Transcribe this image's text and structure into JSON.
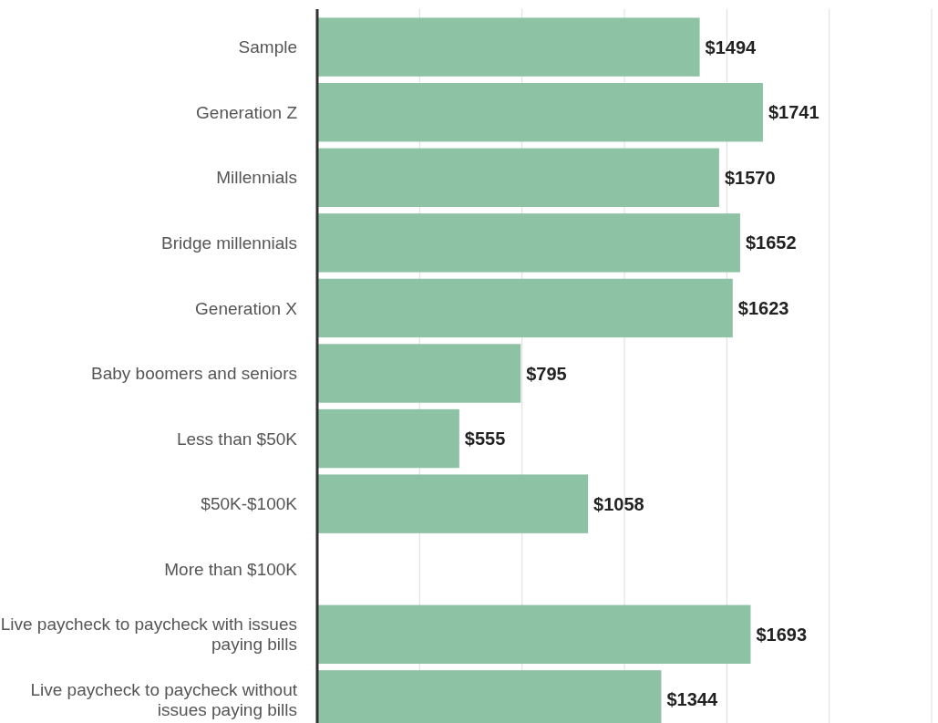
{
  "chart_data": {
    "type": "bar",
    "orientation": "horizontal",
    "categories": [
      "Sample",
      "Generation Z",
      "Millennials",
      "Bridge millennials",
      "Generation X",
      "Baby boomers and seniors",
      "Less than $50K",
      "$50K-$100K",
      "More than $100K",
      "Live paycheck to paycheck with issues paying bills",
      "Live paycheck to paycheck without issues paying bills"
    ],
    "values": [
      1494,
      1741,
      1570,
      1652,
      1623,
      795,
      555,
      1058,
      null,
      1693,
      1344
    ],
    "value_labels": [
      "$1494",
      "$1741",
      "$1570",
      "$1652",
      "$1623",
      "$795",
      "$555",
      "$1058",
      null,
      "$1693",
      "$1344"
    ],
    "color": "#8dc2a4",
    "xlim": [
      0,
      2400
    ],
    "xticks": [
      {
        "value": 0,
        "label": null
      },
      {
        "value": 400,
        "label": null
      },
      {
        "value": 800,
        "label": null
      },
      {
        "value": 1200,
        "label": null
      },
      {
        "value": 1600,
        "label": null
      },
      {
        "value": 2000,
        "label": null
      },
      {
        "value": 2400,
        "label": null
      }
    ],
    "grid": "x"
  }
}
